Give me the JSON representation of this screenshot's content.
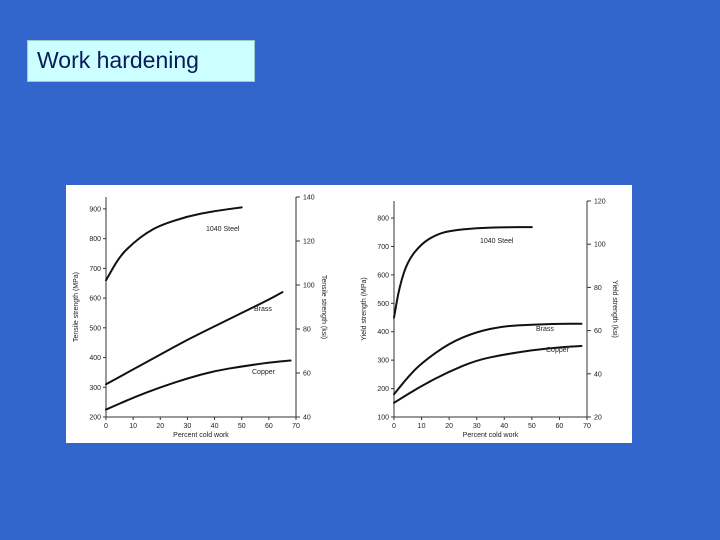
{
  "slide": {
    "title": "Work hardening"
  },
  "chart_data": [
    {
      "type": "line",
      "xlabel": "Percent cold work",
      "ylabel": "Tensile strength (MPa)",
      "ylabel_right": "Tensile strength (ksi)",
      "xlim": [
        0,
        70
      ],
      "ylim": [
        200,
        940
      ],
      "ylim_right": [
        40,
        140
      ],
      "x_ticks": [
        0,
        10,
        20,
        30,
        40,
        50,
        60,
        70
      ],
      "y_ticks": [
        200,
        300,
        400,
        500,
        600,
        700,
        800,
        900
      ],
      "y_ticks_right": [
        40,
        60,
        80,
        100,
        120,
        140
      ],
      "grid": false,
      "series": [
        {
          "name": "1040 Steel",
          "x": [
            0,
            5,
            10,
            15,
            20,
            30,
            40,
            50
          ],
          "y": [
            660,
            740,
            785,
            820,
            845,
            875,
            893,
            905
          ]
        },
        {
          "name": "Brass",
          "x": [
            0,
            10,
            20,
            30,
            40,
            50,
            60,
            65
          ],
          "y": [
            310,
            360,
            410,
            460,
            505,
            550,
            595,
            620
          ]
        },
        {
          "name": "Copper",
          "x": [
            0,
            10,
            20,
            30,
            40,
            50,
            60,
            68
          ],
          "y": [
            225,
            265,
            300,
            330,
            355,
            370,
            383,
            390
          ]
        }
      ]
    },
    {
      "type": "line",
      "xlabel": "Percent cold work",
      "ylabel": "Yield strength (MPa)",
      "ylabel_right": "Yield strength (ksi)",
      "xlim": [
        0,
        70
      ],
      "ylim": [
        100,
        860
      ],
      "ylim_right": [
        20,
        120
      ],
      "x_ticks": [
        0,
        10,
        20,
        30,
        40,
        50,
        60,
        70
      ],
      "y_ticks": [
        100,
        200,
        300,
        400,
        500,
        600,
        700,
        800
      ],
      "y_ticks_right": [
        20,
        40,
        60,
        80,
        100,
        120
      ],
      "grid": false,
      "series": [
        {
          "name": "1040 Steel",
          "x": [
            0,
            2,
            5,
            10,
            15,
            20,
            30,
            40,
            50
          ],
          "y": [
            450,
            560,
            650,
            710,
            740,
            755,
            765,
            768,
            768
          ]
        },
        {
          "name": "Brass",
          "x": [
            0,
            5,
            10,
            20,
            30,
            40,
            50,
            60,
            68
          ],
          "y": [
            180,
            240,
            290,
            360,
            400,
            420,
            425,
            428,
            428
          ]
        },
        {
          "name": "Copper",
          "x": [
            0,
            10,
            20,
            30,
            40,
            50,
            60,
            68
          ],
          "y": [
            150,
            210,
            260,
            300,
            320,
            335,
            345,
            350
          ]
        }
      ]
    }
  ]
}
